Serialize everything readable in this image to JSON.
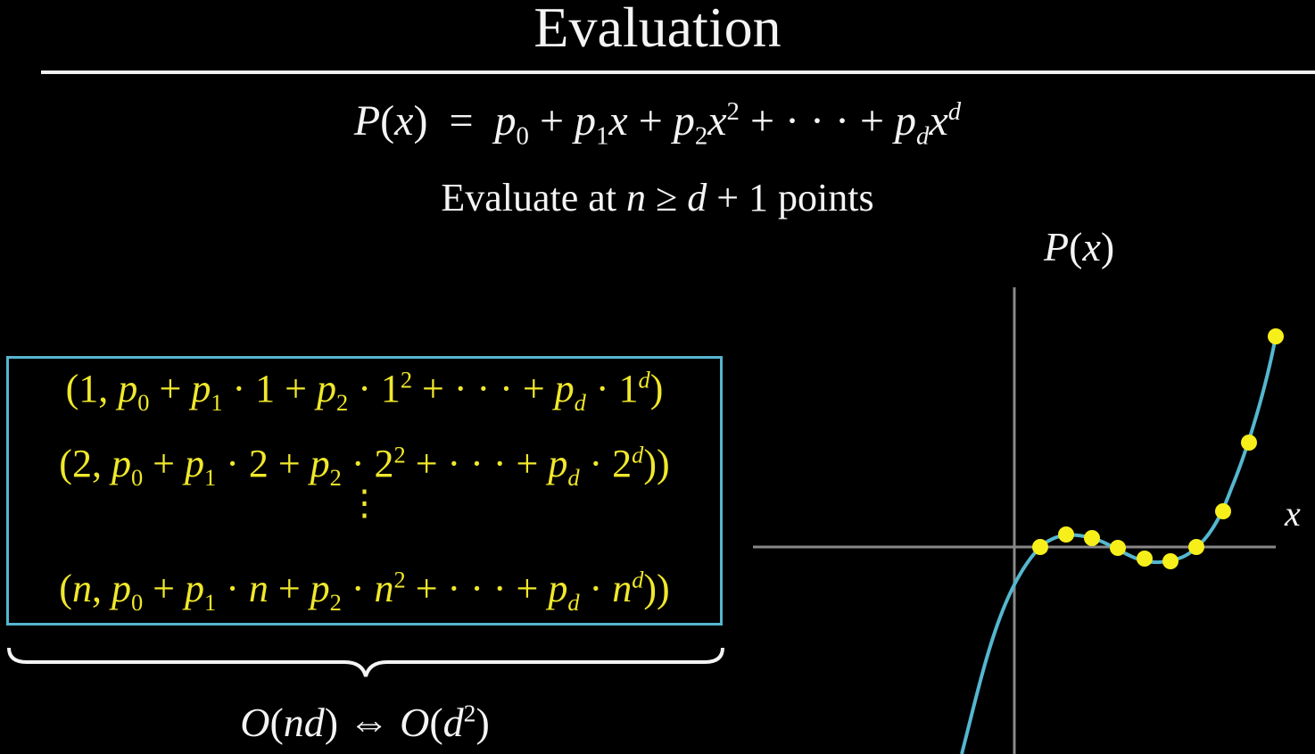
{
  "title": "Evaluation",
  "formula": {
    "lhs": "P(x)",
    "eq": " = ",
    "rhs": "p0 + p1x + p2x2 + ··· + pdxd"
  },
  "subtitle": {
    "pre": "Evaluate at ",
    "cond": "n ≥ d + 1",
    "post": " points"
  },
  "points_box": {
    "row1": "(1, p0 + p1 · 1 + p2 · 12 + ··· + pd · 1d)",
    "row2": "(2, p0 + p1 · 2 + p2 · 22 + ··· + pd · 2d))",
    "vdots": "⋮",
    "row3": "(n, p0 + p1 · n + p2 · n2 + ··· + pd · nd))"
  },
  "complexity": {
    "left": "O(nd)",
    "arrow": " ⇔ ",
    "right": "O(d2)"
  },
  "graph": {
    "y_label": "P(x)",
    "x_label": "x",
    "curve_color": "#55b6cf",
    "point_color": "#f7ef1a",
    "points": [
      [
        1,
        0
      ],
      [
        2,
        0.35
      ],
      [
        3,
        0.15
      ],
      [
        4,
        -0.1
      ],
      [
        5,
        -0.3
      ],
      [
        6,
        -0.25
      ],
      [
        7,
        0.1
      ],
      [
        8,
        0.8
      ],
      [
        9,
        2.2
      ],
      [
        10,
        4.2
      ]
    ]
  },
  "colors": {
    "background": "#000000",
    "text": "#f4f4f4",
    "highlight": "#f0e82a",
    "box_border": "#55b6cf"
  }
}
